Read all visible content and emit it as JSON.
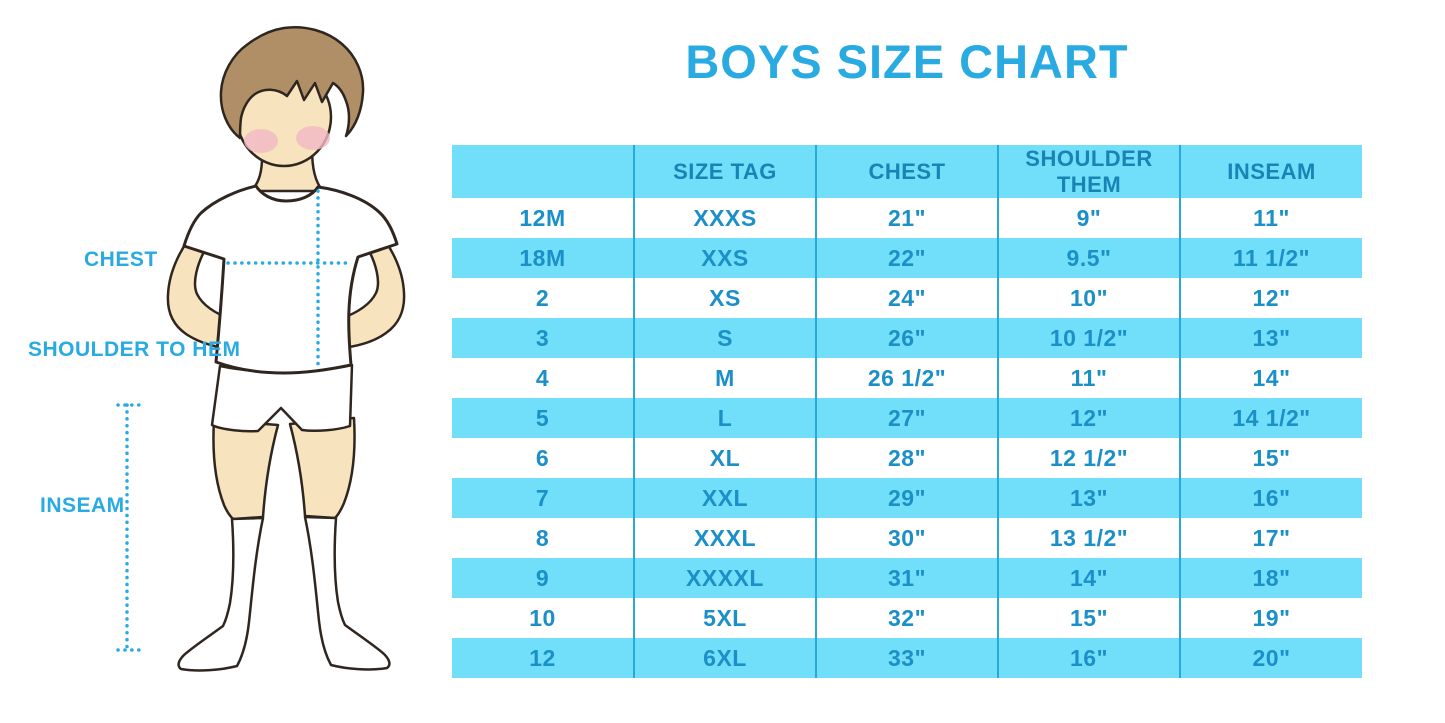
{
  "title": "BOYS SIZE CHART",
  "figure": {
    "labels": {
      "chest": "CHEST",
      "shoulder_to_hem": "SHOULDER TO HEM",
      "inseam": "INSEAM"
    }
  },
  "chart_data": {
    "type": "table",
    "title": "BOYS SIZE CHART",
    "columns": [
      "",
      "SIZE TAG",
      "CHEST",
      "SHOULDER THEM",
      "INSEAM"
    ],
    "rows": [
      [
        "12M",
        "XXXS",
        "21\"",
        "9\"",
        "11\""
      ],
      [
        "18M",
        "XXS",
        "22\"",
        "9.5\"",
        "11 1/2\""
      ],
      [
        "2",
        "XS",
        "24\"",
        "10\"",
        "12\""
      ],
      [
        "3",
        "S",
        "26\"",
        "10 1/2\"",
        "13\""
      ],
      [
        "4",
        "M",
        "26 1/2\"",
        "11\"",
        "14\""
      ],
      [
        "5",
        "L",
        "27\"",
        "12\"",
        "14 1/2\""
      ],
      [
        "6",
        "XL",
        "28\"",
        "12 1/2\"",
        "15\""
      ],
      [
        "7",
        "XXL",
        "29\"",
        "13\"",
        "16\""
      ],
      [
        "8",
        "XXXL",
        "30\"",
        "13 1/2\"",
        "17\""
      ],
      [
        "9",
        "XXXXL",
        "31\"",
        "14\"",
        "18\""
      ],
      [
        "10",
        "5XL",
        "32\"",
        "15\"",
        "19\""
      ],
      [
        "12",
        "6XL",
        "33\"",
        "16\"",
        "20\""
      ]
    ],
    "layout_hints": {
      "alternating_row_colors": [
        "#FFFFFF",
        "#72DFFA"
      ],
      "header_bg": "#72DFFA",
      "divider_color": "#2AA9D9",
      "text_color": "#1B8FC7"
    }
  },
  "colors": {
    "title_blue": "#29ABE2",
    "header_bg": "#72DFFA",
    "row_alt_bg": "#72DFFA",
    "divider": "#2AA9D9",
    "header_text": "#1884B6",
    "cell_text": "#1B8FC7",
    "label_blue": "#29ABE2",
    "dotted_line": "#29ABE2",
    "skin": "#F7E3BE",
    "hair": "#B08F66",
    "blush": "#F3B9C5",
    "outline": "#2F2620",
    "garment_white": "#FFFFFF"
  }
}
